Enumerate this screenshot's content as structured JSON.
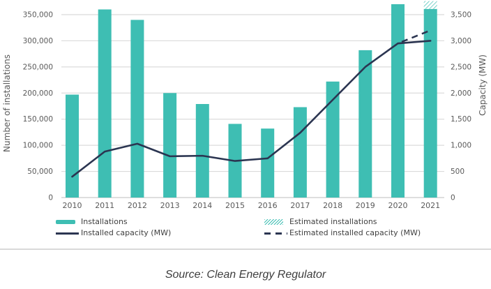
{
  "chart_data": {
    "type": "bar",
    "subtype": "combo-bar-line-dual-axis",
    "title": "",
    "categories": [
      "2010",
      "2011",
      "2012",
      "2013",
      "2014",
      "2015",
      "2016",
      "2017",
      "2018",
      "2019",
      "2020",
      "2021"
    ],
    "series": [
      {
        "name": "Installations",
        "type": "bar",
        "axis": "left",
        "values": [
          197000,
          360000,
          340000,
          200000,
          179000,
          141000,
          132000,
          173000,
          222000,
          282000,
          370000,
          361000
        ]
      },
      {
        "name": "Estimated installations",
        "type": "bar-hatched-extension",
        "axis": "left",
        "category": "2021",
        "from": 361000,
        "to": 376000
      },
      {
        "name": "Installed capacity (MW)",
        "type": "line",
        "axis": "right",
        "values": [
          400,
          880,
          1030,
          790,
          800,
          700,
          750,
          1240,
          1870,
          2500,
          2950,
          3000
        ]
      },
      {
        "name": "Estimated installed capacity (MW)",
        "type": "line-dashed",
        "axis": "right",
        "categories": [
          "2020",
          "2021"
        ],
        "values": [
          2950,
          3200
        ]
      }
    ],
    "left_axis": {
      "title": "Number of installations",
      "min": 0,
      "max": 350000,
      "step": 50000,
      "tick_labels": [
        "0",
        "50,000",
        "100,000",
        "150,000",
        "200,000",
        "250,000",
        "300,000",
        "350,000"
      ]
    },
    "right_axis": {
      "title": "Capacity (MW)",
      "min": 0,
      "max": 3500,
      "step": 500,
      "tick_labels": [
        "0",
        "500",
        "1,000",
        "1,500",
        "2,000",
        "2,500",
        "3,000",
        "3,500"
      ]
    },
    "grid": true,
    "legend_position": "bottom"
  },
  "legend": {
    "installations": "Installations",
    "installed_capacity": "Installed capacity (MW)",
    "estimated_installations": "Estimated installations",
    "estimated_installed_capacity": "Estimated installed capacity (MW)"
  },
  "source_line": "Source: Clean Energy Regulator",
  "colors": {
    "bar_teal": "#3EBEB3",
    "line_navy": "#2B3551",
    "grid": "#DBDBDB",
    "axis_line": "#C9C9C9",
    "tick_text": "#595959"
  }
}
